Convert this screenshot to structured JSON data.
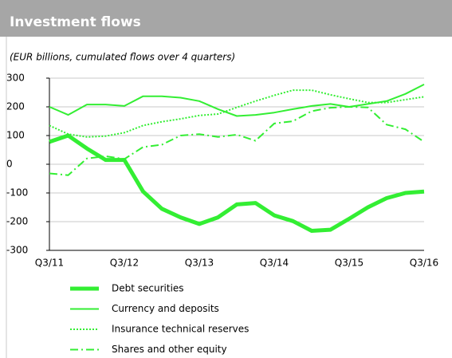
{
  "chart_data": {
    "type": "line",
    "title": "Investment flows",
    "subtitle": "(EUR billions, cumulated flows over 4 quarters)",
    "categories": [
      "Q3/11",
      null,
      null,
      null,
      "Q3/12",
      null,
      null,
      null,
      "Q3/13",
      null,
      null,
      null,
      "Q3/14",
      null,
      null,
      null,
      "Q3/15",
      null,
      null,
      null,
      "Q3/16"
    ],
    "ylim": [
      -300,
      300
    ],
    "yticks": [
      -300,
      -200,
      -100,
      0,
      100,
      200,
      300
    ],
    "grid": true,
    "series": [
      {
        "name": "Debt securities",
        "color": "#33ee33",
        "width": 5,
        "style": "solid",
        "values": [
          78,
          100,
          55,
          15,
          15,
          -95,
          -155,
          -185,
          -208,
          -185,
          -140,
          -135,
          -178,
          -198,
          -232,
          -228,
          -190,
          -150,
          -118,
          -100,
          -95
        ]
      },
      {
        "name": "Currency and deposits",
        "color": "#33ee33",
        "width": 2,
        "style": "solid",
        "values": [
          200,
          172,
          208,
          208,
          203,
          237,
          237,
          232,
          220,
          192,
          168,
          172,
          180,
          192,
          203,
          210,
          200,
          210,
          220,
          245,
          278
        ]
      },
      {
        "name": "Insurance technical reserves",
        "color": "#33ee33",
        "width": 2,
        "style": "dotted",
        "values": [
          135,
          105,
          95,
          98,
          110,
          135,
          148,
          158,
          170,
          175,
          198,
          220,
          240,
          258,
          258,
          242,
          228,
          215,
          215,
          225,
          235
        ]
      },
      {
        "name": "Shares and other equity",
        "color": "#33ee33",
        "width": 2,
        "style": "dashdot",
        "values": [
          -32,
          -38,
          20,
          28,
          18,
          60,
          68,
          100,
          105,
          95,
          103,
          82,
          142,
          150,
          185,
          197,
          200,
          198,
          138,
          122,
          78
        ]
      }
    ]
  }
}
